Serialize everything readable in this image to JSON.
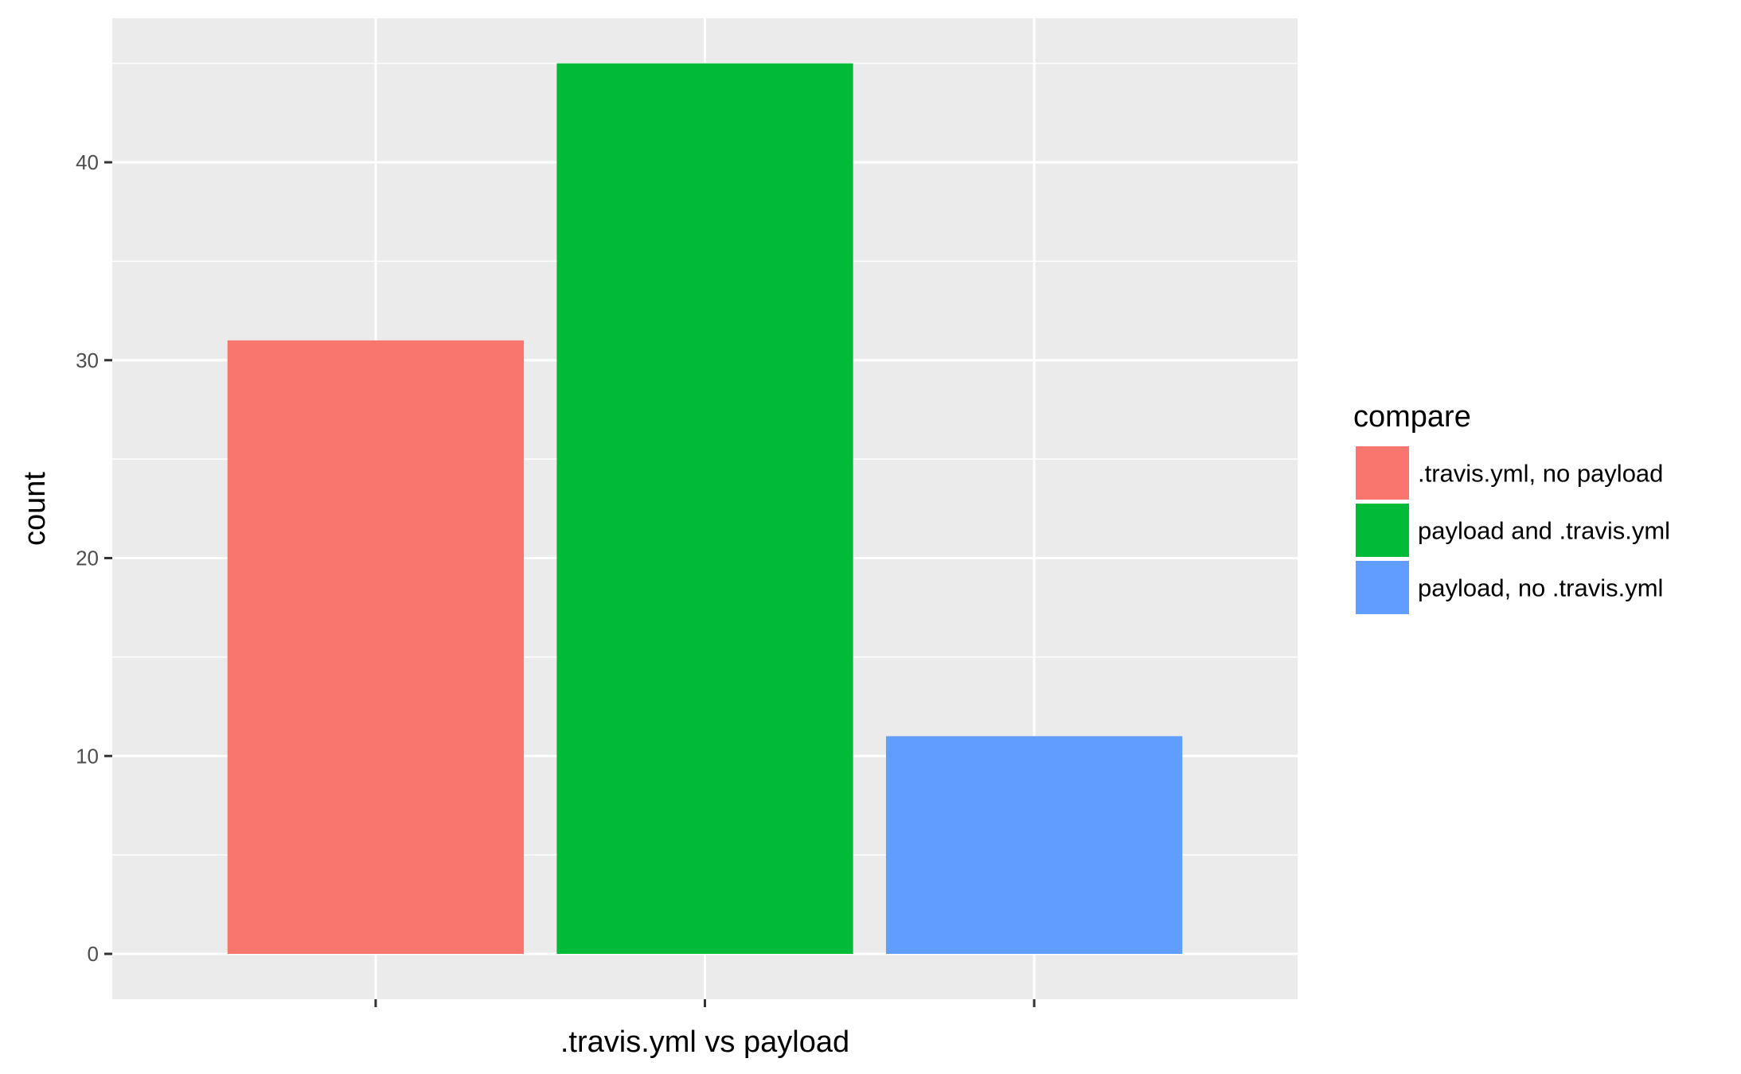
{
  "chart_data": {
    "type": "bar",
    "xlabel": ".travis.yml vs payload",
    "ylabel": "count",
    "ylim": [
      0,
      47.25
    ],
    "yticks": [
      0,
      10,
      20,
      30,
      40
    ],
    "grid": true,
    "legend_placement": "right",
    "legend_title": "compare",
    "categories": [
      ".travis.yml, no payload",
      "payload and .travis.yml",
      "payload, no .travis.yml"
    ],
    "values": [
      31,
      45,
      11
    ],
    "colors": [
      "#F8766D",
      "#00BA38",
      "#619CFF"
    ],
    "x_tick_labels_shown": false
  }
}
